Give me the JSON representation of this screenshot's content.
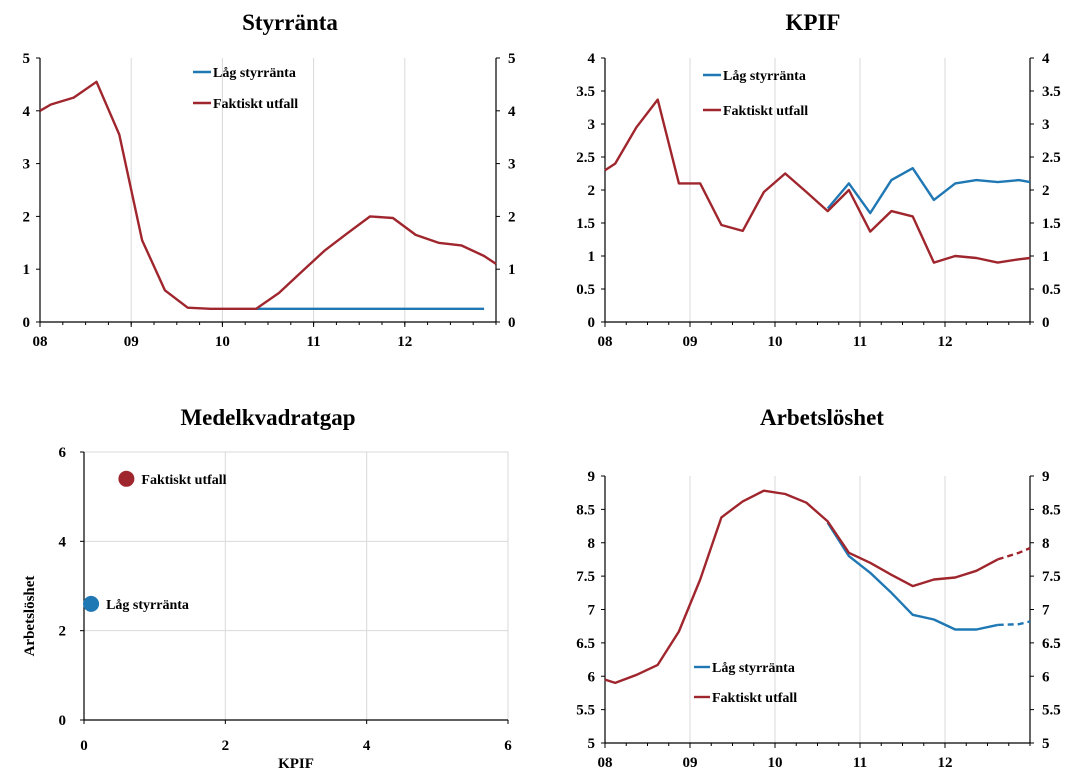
{
  "colors": {
    "low_rate": "#1f78b4",
    "actual": "#a0262e",
    "grid": "#d9d9d9"
  },
  "chart_data": [
    {
      "type": "line",
      "title": "Styrränta",
      "x_tick_labels": [
        "08",
        "09",
        "10",
        "11",
        "12"
      ],
      "xlim": [
        2008.0,
        2013.0
      ],
      "ylim": [
        0,
        5
      ],
      "y_ticks": [
        0,
        1,
        2,
        3,
        4,
        5
      ],
      "grid": true,
      "legend": "top-center",
      "series": [
        {
          "name": "Låg styrränta",
          "x": [
            2010.37,
            2010.62,
            2010.87,
            2011.12,
            2011.37,
            2011.62,
            2011.87,
            2012.12,
            2012.37,
            2012.62,
            2012.87
          ],
          "values": [
            0.25,
            0.25,
            0.25,
            0.25,
            0.25,
            0.25,
            0.25,
            0.25,
            0.25,
            0.25,
            0.25
          ]
        },
        {
          "name": "Faktiskt utfall",
          "x": [
            2008.0,
            2008.12,
            2008.37,
            2008.62,
            2008.87,
            2009.12,
            2009.37,
            2009.62,
            2009.87,
            2010.12,
            2010.37,
            2010.62,
            2010.87,
            2011.12,
            2011.37,
            2011.62,
            2011.87,
            2012.12,
            2012.37,
            2012.62,
            2012.87,
            2013.0
          ],
          "values": [
            4.0,
            4.12,
            4.25,
            4.55,
            3.55,
            1.55,
            0.6,
            0.27,
            0.25,
            0.25,
            0.25,
            0.55,
            0.95,
            1.35,
            1.68,
            2.0,
            1.97,
            1.65,
            1.5,
            1.45,
            1.25,
            1.1
          ]
        }
      ]
    },
    {
      "type": "line",
      "title": "KPIF",
      "x_tick_labels": [
        "08",
        "09",
        "10",
        "11",
        "12"
      ],
      "xlim": [
        2008.0,
        2013.0
      ],
      "ylim": [
        0,
        4
      ],
      "y_ticks": [
        0,
        0.5,
        1,
        1.5,
        2,
        2.5,
        3,
        3.5,
        4
      ],
      "grid": true,
      "legend": "top-left",
      "series": [
        {
          "name": "Låg styrränta",
          "x": [
            2010.62,
            2010.87,
            2011.12,
            2011.37,
            2011.62,
            2011.87,
            2012.12,
            2012.37,
            2012.62,
            2012.87,
            2013.0
          ],
          "values": [
            1.72,
            2.1,
            1.65,
            2.15,
            2.33,
            1.85,
            2.1,
            2.15,
            2.12,
            2.15,
            2.12
          ]
        },
        {
          "name": "Faktiskt utfall",
          "x": [
            2008.0,
            2008.12,
            2008.37,
            2008.62,
            2008.87,
            2009.12,
            2009.37,
            2009.62,
            2009.87,
            2010.12,
            2010.37,
            2010.62,
            2010.87,
            2011.12,
            2011.37,
            2011.62,
            2011.87,
            2012.12,
            2012.37,
            2012.62,
            2012.87,
            2013.0
          ],
          "values": [
            2.3,
            2.4,
            2.95,
            3.37,
            2.1,
            2.1,
            1.47,
            1.38,
            1.97,
            2.25,
            1.97,
            1.68,
            2.0,
            1.37,
            1.68,
            1.6,
            0.9,
            1.0,
            0.97,
            0.9,
            0.95,
            0.97
          ]
        }
      ]
    },
    {
      "type": "scatter",
      "title": "Medelkvadratgap",
      "xlabel": "KPIF",
      "ylabel": "Arbetslöshet",
      "xlim": [
        0,
        6
      ],
      "ylim": [
        0,
        6
      ],
      "x_ticks": [
        0,
        2,
        4,
        6
      ],
      "y_ticks": [
        0,
        2,
        4,
        6
      ],
      "grid": true,
      "series": [
        {
          "name": "Faktiskt utfall",
          "x": [
            0.6
          ],
          "values": [
            5.4
          ]
        },
        {
          "name": "Låg styrränta",
          "x": [
            0.1
          ],
          "values": [
            2.6
          ]
        }
      ]
    },
    {
      "type": "line",
      "title": "Arbetslöshet",
      "x_tick_labels": [
        "08",
        "09",
        "10",
        "11",
        "12"
      ],
      "xlim": [
        2008.0,
        2013.0
      ],
      "ylim": [
        5,
        9
      ],
      "y_ticks": [
        5,
        5.5,
        6,
        6.5,
        7,
        7.5,
        8,
        8.5,
        9
      ],
      "grid": true,
      "legend": "bottom-left",
      "series": [
        {
          "name": "Låg styrränta",
          "x": [
            2010.62,
            2010.87,
            2011.12,
            2011.37,
            2011.62,
            2011.87,
            2012.12,
            2012.37,
            2012.62
          ],
          "values": [
            8.3,
            7.8,
            7.55,
            7.25,
            6.92,
            6.85,
            6.7,
            6.7,
            6.77
          ],
          "dashed_x": [
            2012.62,
            2012.87,
            2013.0
          ],
          "dashed_values": [
            6.77,
            6.78,
            6.82
          ]
        },
        {
          "name": "Faktiskt utfall",
          "x": [
            2008.0,
            2008.12,
            2008.37,
            2008.62,
            2008.87,
            2009.12,
            2009.37,
            2009.62,
            2009.87,
            2010.12,
            2010.37,
            2010.62,
            2010.87,
            2011.12,
            2011.37,
            2011.62,
            2011.87,
            2012.12,
            2012.37,
            2012.62
          ],
          "values": [
            5.95,
            5.9,
            6.02,
            6.17,
            6.67,
            7.45,
            8.38,
            8.62,
            8.78,
            8.73,
            8.6,
            8.32,
            7.85,
            7.7,
            7.52,
            7.35,
            7.45,
            7.48,
            7.58,
            7.75
          ],
          "dashed_x": [
            2012.62,
            2012.87,
            2013.0
          ],
          "dashed_values": [
            7.75,
            7.85,
            7.92
          ]
        }
      ]
    }
  ]
}
